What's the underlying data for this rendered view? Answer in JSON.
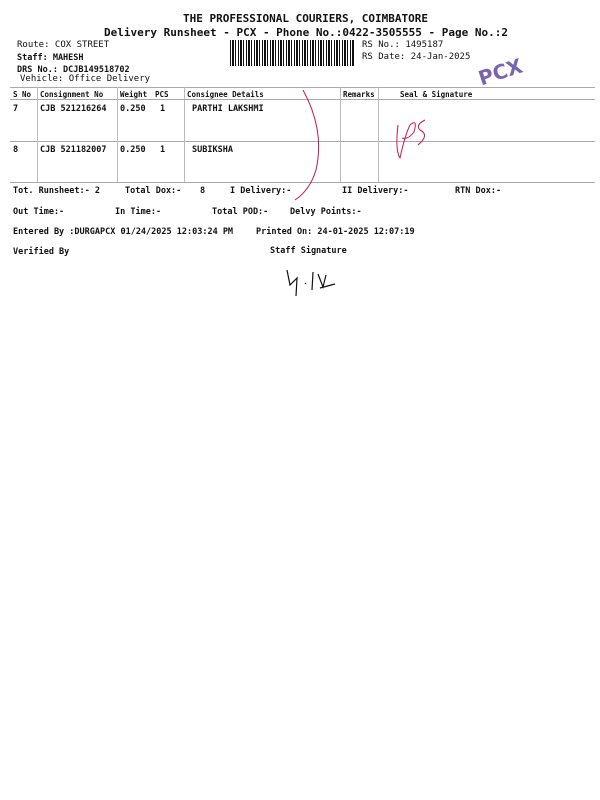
{
  "header": {
    "company": "THE PROFESSIONAL COURIERS, COIMBATORE",
    "subtitle": "Delivery Runsheet - PCX - Phone No.:0422-3505555 - Page No.:2",
    "route": "Route: COX STREET",
    "staff": "Staff: MAHESH",
    "drs_no": "DRS No.: DCJB149518702",
    "vehicle": "Vehicle: Office Delivery",
    "rs_no": "RS No.: 1495187",
    "rs_date": "RS Date: 24-Jan-2025",
    "stamp": "PCX"
  },
  "table": {
    "columns": [
      "S No",
      "Consignment No",
      "Weight",
      "PCS",
      "Consignee Details",
      "Remarks",
      "Seal & Signature"
    ],
    "rows": [
      {
        "sno": "7",
        "consignment": "CJB 521216264",
        "weight": "0.250",
        "pcs": "1",
        "consignee": "PARTHI LAKSHMI",
        "remarks": ""
      },
      {
        "sno": "8",
        "consignment": "CJB 521182007",
        "weight": "0.250",
        "pcs": "1",
        "consignee": "SUBIKSHA",
        "remarks": ""
      }
    ]
  },
  "summary": {
    "tot_runsheet": "Tot. Runsheet:- 2",
    "total_dox_label": "Total Dox:-",
    "total_dox": "8",
    "i_delivery": "I Delivery:-",
    "ii_delivery": "II Delivery:-",
    "rtn_dox": "RTN Dox:-",
    "out_time": "Out Time:-",
    "in_time": "In Time:-",
    "total_pod": "Total POD:-",
    "delvy_points": "Delvy Points:-",
    "entered_by": "Entered By :DURGAPCX 01/24/2025 12:03:24 PM",
    "printed_on": "Printed On: 24-01-2025 12:07:19",
    "verified_by": "Verified By",
    "staff_signature": "Staff Signature"
  }
}
